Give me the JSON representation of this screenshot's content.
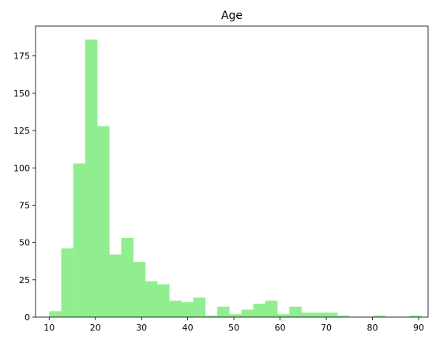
{
  "chart_data": {
    "type": "bar",
    "title": "Age",
    "xlabel": "",
    "ylabel": "",
    "xlim": [
      7.05,
      92.05
    ],
    "ylim": [
      0,
      195
    ],
    "x_ticks": [
      10,
      20,
      30,
      40,
      50,
      60,
      70,
      80,
      90
    ],
    "y_ticks": [
      0,
      25,
      50,
      75,
      100,
      125,
      150,
      175
    ],
    "bar_color": "#90ee90",
    "grid": false,
    "bins": [
      {
        "x0": 10,
        "x1": 12.6,
        "count": 4
      },
      {
        "x0": 12.6,
        "x1": 15.2,
        "count": 46
      },
      {
        "x0": 15.2,
        "x1": 17.8,
        "count": 103
      },
      {
        "x0": 17.8,
        "x1": 20.4,
        "count": 186
      },
      {
        "x0": 20.4,
        "x1": 23.0,
        "count": 128
      },
      {
        "x0": 23.0,
        "x1": 25.6,
        "count": 42
      },
      {
        "x0": 25.6,
        "x1": 28.2,
        "count": 53
      },
      {
        "x0": 28.2,
        "x1": 30.8,
        "count": 37
      },
      {
        "x0": 30.8,
        "x1": 33.4,
        "count": 24
      },
      {
        "x0": 33.4,
        "x1": 36.0,
        "count": 22
      },
      {
        "x0": 36.0,
        "x1": 38.6,
        "count": 11
      },
      {
        "x0": 38.6,
        "x1": 41.2,
        "count": 10
      },
      {
        "x0": 41.2,
        "x1": 43.8,
        "count": 13
      },
      {
        "x0": 43.8,
        "x1": 46.4,
        "count": 1
      },
      {
        "x0": 46.4,
        "x1": 49.0,
        "count": 7
      },
      {
        "x0": 49.0,
        "x1": 51.6,
        "count": 2
      },
      {
        "x0": 51.6,
        "x1": 54.2,
        "count": 5
      },
      {
        "x0": 54.2,
        "x1": 56.8,
        "count": 9
      },
      {
        "x0": 56.8,
        "x1": 59.4,
        "count": 11
      },
      {
        "x0": 59.4,
        "x1": 62.0,
        "count": 2
      },
      {
        "x0": 62.0,
        "x1": 64.6,
        "count": 7
      },
      {
        "x0": 64.6,
        "x1": 67.2,
        "count": 3
      },
      {
        "x0": 67.2,
        "x1": 69.8,
        "count": 3
      },
      {
        "x0": 69.8,
        "x1": 72.4,
        "count": 3
      },
      {
        "x0": 72.4,
        "x1": 75.0,
        "count": 1
      },
      {
        "x0": 75.0,
        "x1": 77.6,
        "count": 0
      },
      {
        "x0": 77.6,
        "x1": 80.2,
        "count": 0
      },
      {
        "x0": 80.2,
        "x1": 82.8,
        "count": 1
      },
      {
        "x0": 82.8,
        "x1": 85.4,
        "count": 0
      },
      {
        "x0": 85.4,
        "x1": 88.0,
        "count": 0
      },
      {
        "x0": 88.0,
        "x1": 90.6,
        "count": 1
      }
    ]
  }
}
